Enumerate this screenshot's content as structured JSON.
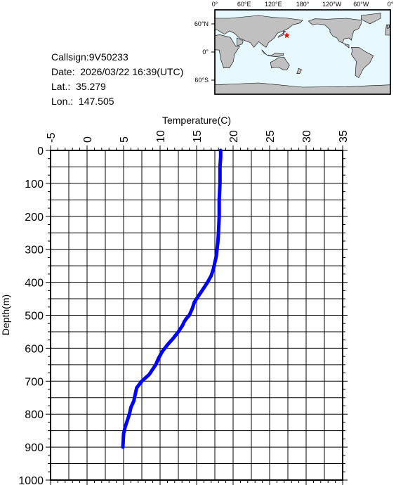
{
  "info": {
    "callsign": "Callsign:9V50233",
    "date": "Date:  2026/03/22 16:39(UTC)",
    "lat": "Lat.:  35.279",
    "lon": "Lon.:  147.505"
  },
  "map": {
    "top_labels": [
      "0°",
      "60°E",
      "120°E",
      "180°",
      "120°W",
      "60°W",
      "0°"
    ],
    "left_labels": [
      "60°N",
      "0°",
      "60°S"
    ],
    "land_color": "#c0c0c0",
    "ocean_color": "#e8f8ff",
    "marker_color": "#ff0000",
    "marker": {
      "lat": 35.279,
      "lon": 147.505
    }
  },
  "chart_data": {
    "type": "line",
    "xlabel": "Temperature(C)",
    "ylabel": "Depth(m)",
    "xlim": [
      -5,
      35
    ],
    "ylim": [
      0,
      1000
    ],
    "x_ticks": [
      "-5",
      "0",
      "5",
      "10",
      "15",
      "20",
      "25",
      "30",
      "35"
    ],
    "y_ticks": [
      "0",
      "100",
      "200",
      "300",
      "400",
      "500",
      "600",
      "700",
      "800",
      "900",
      "1000"
    ],
    "grid": true,
    "line_color": "#0000ff",
    "series": [
      {
        "temperature": [
          18.3,
          18.3,
          18.2,
          18.2,
          18.1,
          18.1,
          18.0,
          17.9,
          17.8,
          17.7,
          17.5,
          17.3,
          17.0,
          16.5,
          15.9,
          15.3,
          14.7,
          14.4,
          14.0,
          13.6,
          13.3,
          13.1,
          12.5,
          11.8,
          11.0,
          10.3,
          9.8,
          9.4,
          8.5,
          7.5,
          6.8,
          6.6,
          6.4,
          6.0,
          5.8,
          5.5,
          5.2,
          5.0,
          4.9
        ],
        "depth": [
          0,
          20,
          50,
          100,
          150,
          200,
          250,
          280,
          300,
          320,
          340,
          360,
          380,
          400,
          420,
          440,
          460,
          480,
          500,
          510,
          520,
          530,
          550,
          570,
          590,
          610,
          630,
          650,
          680,
          700,
          720,
          740,
          760,
          780,
          800,
          820,
          840,
          860,
          900
        ]
      }
    ]
  }
}
